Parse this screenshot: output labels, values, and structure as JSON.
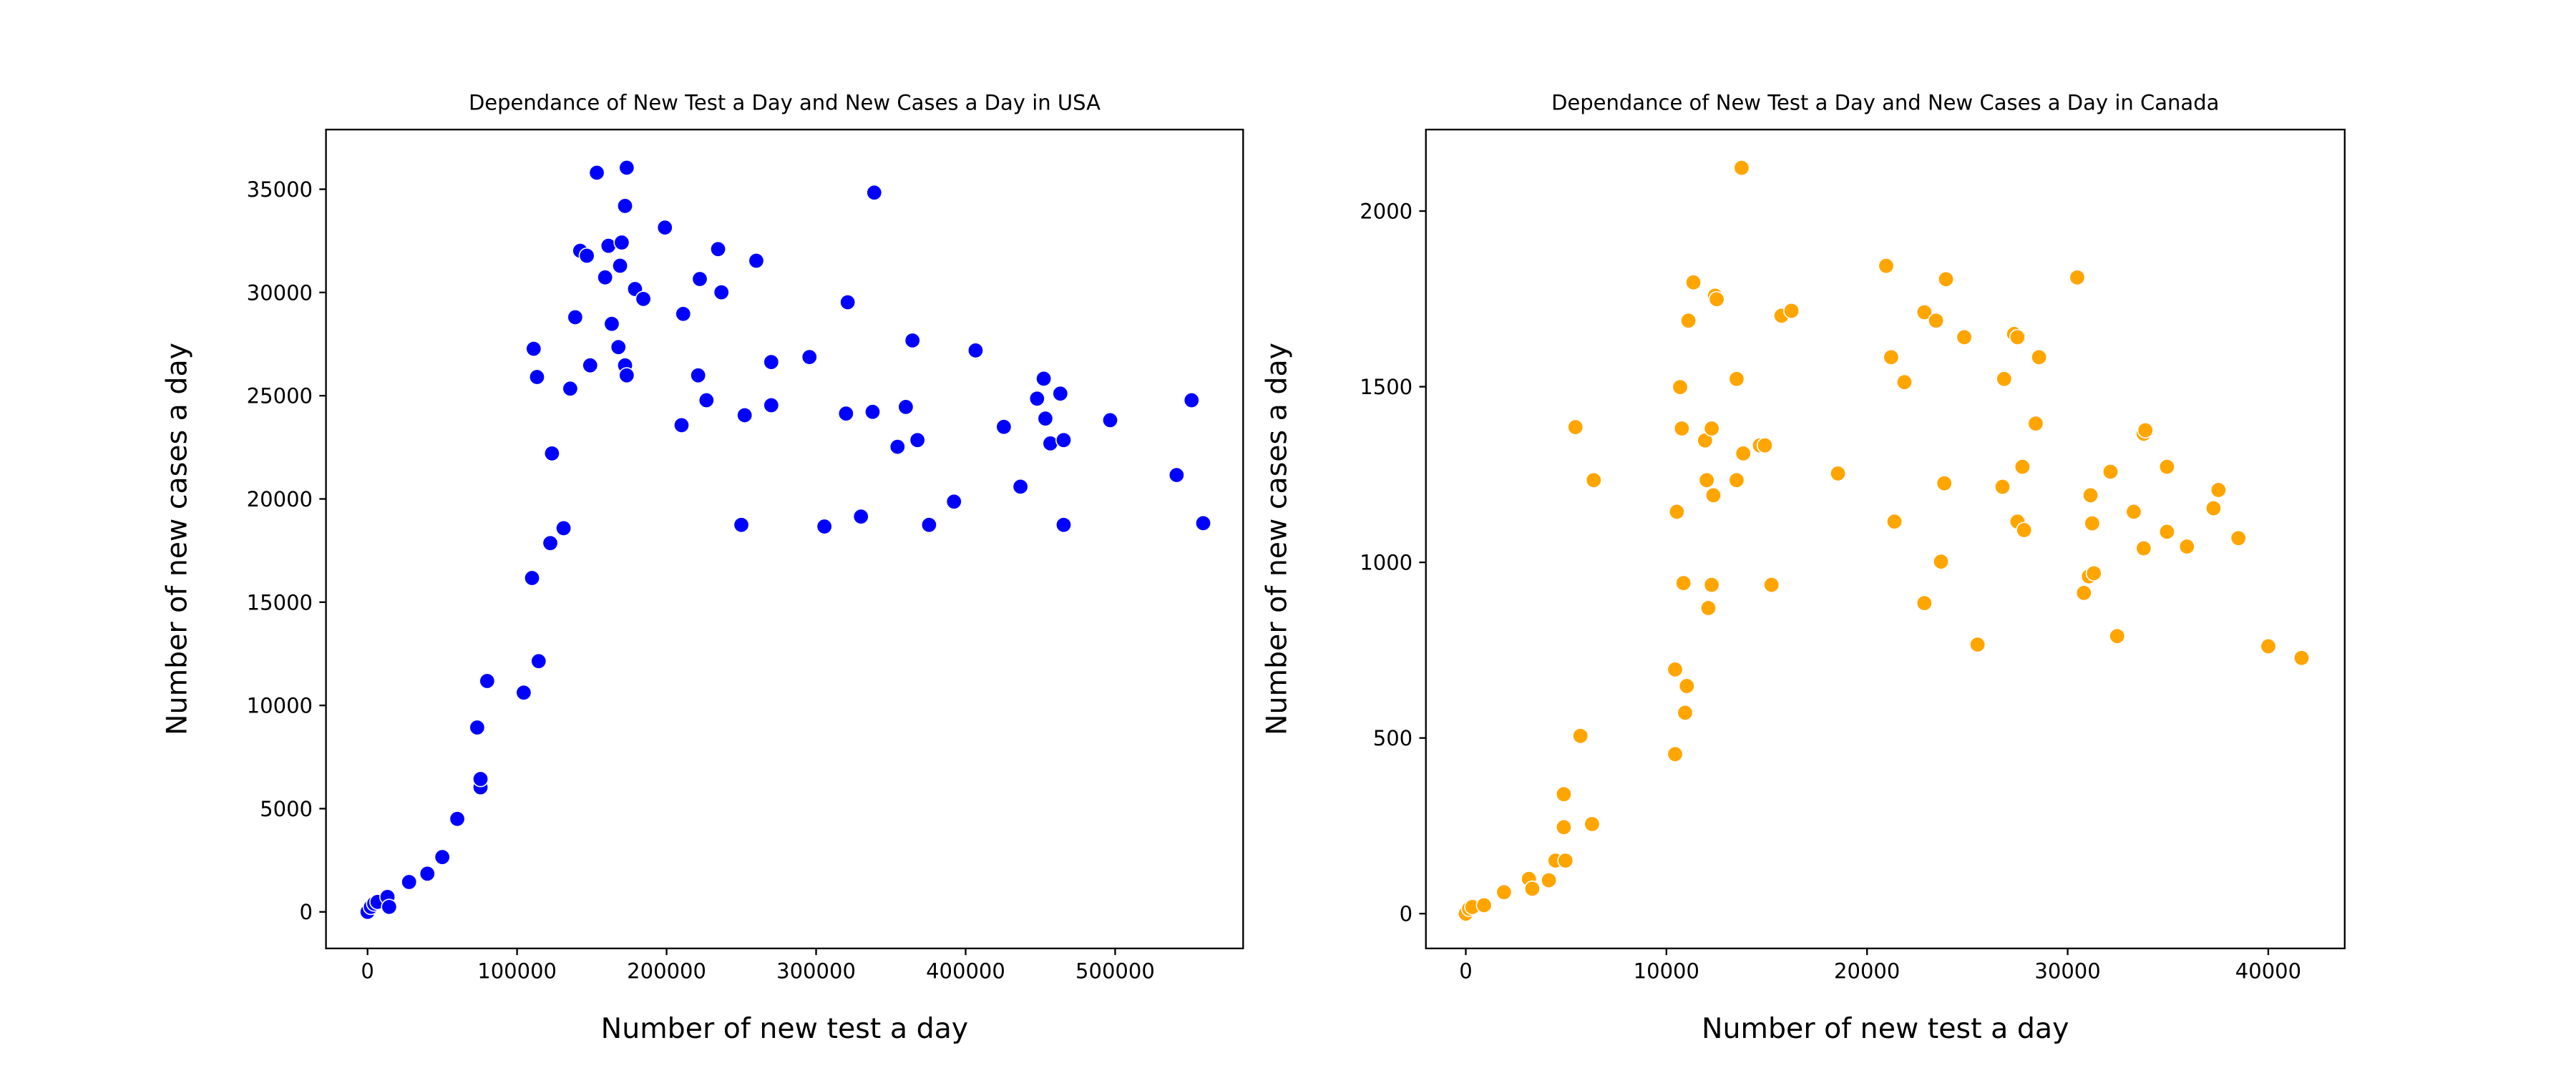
{
  "chart_data": [
    {
      "type": "scatter",
      "title": "Dependance of New Test a Day and New Cases a Day in USA",
      "x_label": "Number of new test a day",
      "y_label": "Number of new cases a day",
      "color": "#0000ff",
      "xlim": [
        -27800,
        585600
      ],
      "ylim": [
        -1770,
        37890
      ],
      "xticks": [
        0,
        100000,
        200000,
        300000,
        400000,
        500000
      ],
      "yticks": [
        0,
        5000,
        10000,
        15000,
        20000,
        25000,
        30000,
        35000
      ],
      "x": [
        0,
        2222,
        4444,
        6667,
        13333,
        14444,
        27778,
        40000,
        50000,
        60000,
        73333,
        75556,
        75556,
        80000,
        104444,
        110000,
        114444,
        122222,
        123333,
        113333,
        111111,
        131111,
        135556,
        138889,
        142222,
        146667,
        148889,
        153333,
        158889,
        161111,
        163333,
        167778,
        168889,
        170000,
        172222,
        172222,
        173333,
        173333,
        178889,
        184444,
        198889,
        210000,
        211111,
        221111,
        222222,
        226667,
        234444,
        236667,
        252222,
        260000,
        270000,
        270000,
        295556,
        250000,
        305556,
        320000,
        321111,
        330000,
        337778,
        338889,
        354444,
        360000,
        364444,
        367778,
        375556,
        392222,
        406667,
        425556,
        436667,
        447778,
        452222,
        453333,
        456667,
        463333,
        465556,
        465556,
        496667,
        541111,
        551111,
        558889
      ],
      "values": [
        0,
        241,
        402,
        483,
        724,
        241,
        1448,
        1850,
        2655,
        4505,
        8930,
        6034,
        6436,
        11183,
        10619,
        16170,
        12142,
        17860,
        22204,
        25905,
        27273,
        18584,
        25342,
        28801,
        32019,
        31778,
        26468,
        35800,
        30732,
        32260,
        28479,
        27353,
        31295,
        32421,
        34191,
        26468,
        25985,
        36042,
        30169,
        29686,
        33145,
        23572,
        28962,
        25985,
        30652,
        24779,
        32100,
        30008,
        24055,
        31537,
        24538,
        26630,
        26871,
        18745,
        18665,
        24135,
        29525,
        19147,
        24216,
        34835,
        22526,
        24457,
        27675,
        22848,
        18745,
        19871,
        27192,
        23491,
        20595,
        24859,
        25824,
        23894,
        22687,
        25100,
        22848,
        18745,
        23813,
        21158,
        24779,
        18826
      ]
    },
    {
      "type": "scatter",
      "title": "Dependance of New Test a Day and New Cases a Day in Canada",
      "x_label": "Number of new test a day",
      "y_label": "Number of new cases a day",
      "color": "#ffa500",
      "xlim": [
        -1988,
        43810
      ],
      "ylim": [
        -99,
        2232
      ],
      "xticks": [
        0,
        10000,
        20000,
        30000,
        40000
      ],
      "yticks": [
        0,
        500,
        1000,
        1500,
        2000
      ],
      "x": [
        0,
        166,
        331,
        911,
        1905,
        3147,
        3313,
        4141,
        4472,
        4969,
        4886,
        4886,
        5715,
        6294,
        6377,
        5466,
        10435,
        10435,
        10518,
        10684,
        10767,
        10850,
        11015,
        10932,
        11098,
        11346,
        11926,
        12009,
        12092,
        12257,
        12340,
        12257,
        12423,
        12506,
        13500,
        13500,
        13831,
        13748,
        14659,
        14907,
        15239,
        15736,
        16233,
        18552,
        20954,
        21202,
        21368,
        21865,
        22859,
        22859,
        23439,
        23686,
        23852,
        23935,
        24846,
        25509,
        26751,
        26834,
        27331,
        27497,
        27497,
        27745,
        27828,
        28408,
        28574,
        30478,
        30810,
        31058,
        31141,
        31224,
        31307,
        32135,
        32466,
        33294,
        33791,
        33791,
        33874,
        34951,
        34951,
        35945,
        37270,
        37518,
        38512,
        40002,
        41659
      ],
      "values": [
        0,
        14,
        19,
        24,
        61,
        99,
        71,
        95,
        151,
        151,
        340,
        246,
        506,
        255,
        1234,
        1385,
        695,
        454,
        1144,
        1499,
        1381,
        941,
        648,
        572,
        1688,
        1797,
        1347,
        1234,
        870,
        936,
        1191,
        1381,
        1759,
        1749,
        1234,
        1522,
        1310,
        2123,
        1333,
        1333,
        936,
        1702,
        1716,
        1253,
        1844,
        1584,
        1116,
        1513,
        884,
        1712,
        1688,
        1002,
        1225,
        1806,
        1641,
        766,
        1215,
        1522,
        1650,
        1641,
        1116,
        1272,
        1092,
        1395,
        1584,
        1811,
        913,
        960,
        1191,
        1111,
        969,
        1258,
        790,
        1144,
        1040,
        1366,
        1376,
        1272,
        1087,
        1045,
        1154,
        1206,
        1069,
        761,
        728
      ]
    }
  ]
}
